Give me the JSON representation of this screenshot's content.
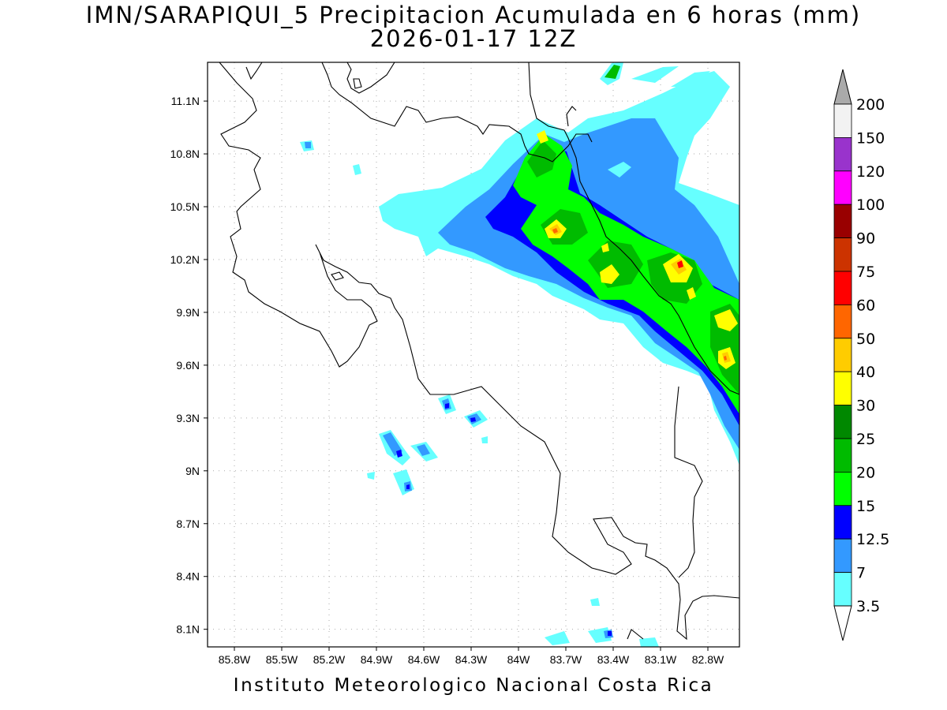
{
  "title_line1": "IMN/SARAPIQUI_5 Precipitacion Acumulada en 6 horas (mm)",
  "title_line2": "2026-01-17 12Z",
  "footer": "Instituto Meteorologico Nacional Costa Rica",
  "map": {
    "lon_ticks": [
      "85.8W",
      "85.5W",
      "85.2W",
      "84.9W",
      "84.6W",
      "84.3W",
      "84W",
      "83.7W",
      "83.4W",
      "83.1W",
      "82.8W"
    ],
    "lat_ticks": [
      "11.1N",
      "10.8N",
      "10.5N",
      "10.2N",
      "9.9N",
      "9.6N",
      "9.3N",
      "9N",
      "8.7N",
      "8.4N",
      "8.1N"
    ],
    "lon_range": [
      -85.97,
      -82.6
    ],
    "lat_range": [
      8.0,
      11.32
    ],
    "grid": "dotted"
  },
  "colorbar": {
    "labels": [
      "200",
      "150",
      "120",
      "100",
      "90",
      "75",
      "60",
      "50",
      "40",
      "30",
      "25",
      "20",
      "15",
      "12.5",
      "7",
      "3.5"
    ],
    "colors": [
      "#f2f2f2",
      "#9933cc",
      "#ff00ff",
      "#990000",
      "#cc3300",
      "#ff0000",
      "#ff6600",
      "#ffcc00",
      "#ffff00",
      "#008800",
      "#00bb00",
      "#00ff00",
      "#0000ff",
      "#3399ff",
      "#66ffff"
    ],
    "top_arrow_color": "#aaaaaa",
    "bottom_arrow_color": "#ffffff"
  }
}
